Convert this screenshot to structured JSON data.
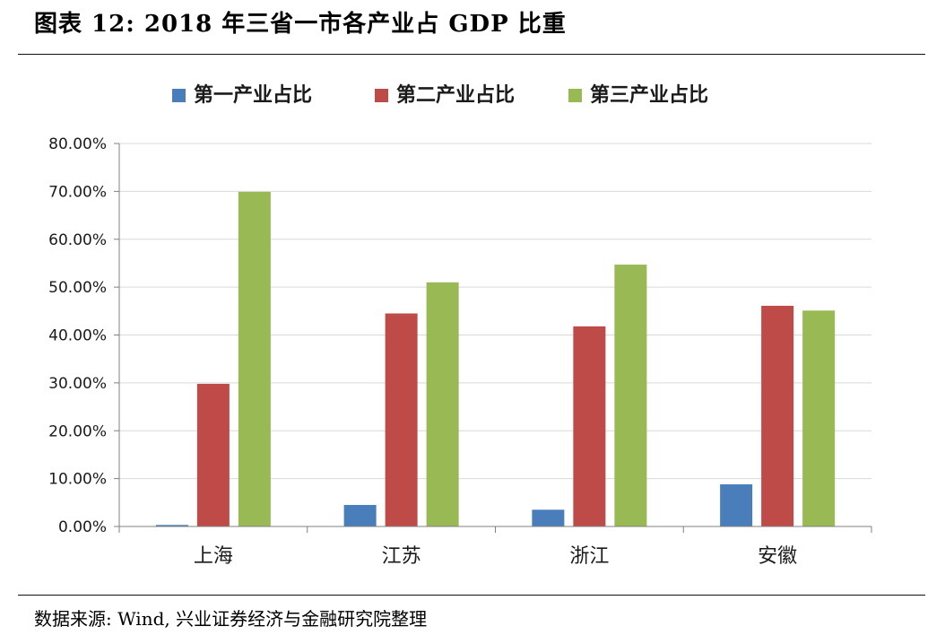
{
  "page": {
    "title": "图表 12: 2018 年三省一市各产业占 GDP 比重",
    "source": "数据来源: Wind, 兴业证券经济与金融研究院整理"
  },
  "chart_data": {
    "type": "bar",
    "categories": [
      "上海",
      "江苏",
      "浙江",
      "安徽"
    ],
    "series": [
      {
        "name": "第一产业占比",
        "color": "#4a7ebb",
        "values": [
          0.32,
          4.5,
          3.5,
          8.8
        ]
      },
      {
        "name": "第二产业占比",
        "color": "#be4b48",
        "values": [
          29.8,
          44.5,
          41.8,
          46.1
        ]
      },
      {
        "name": "第三产业占比",
        "color": "#98b954",
        "values": [
          69.9,
          51.0,
          54.7,
          45.1
        ]
      }
    ],
    "ylim": [
      0,
      80
    ],
    "yticks": [
      "0.00%",
      "10.00%",
      "20.00%",
      "30.00%",
      "40.00%",
      "50.00%",
      "60.00%",
      "70.00%",
      "80.00%"
    ],
    "ytick_values": [
      0,
      10,
      20,
      30,
      40,
      50,
      60,
      70,
      80
    ],
    "grid": true,
    "legend_position": "top-center",
    "xlabel": "",
    "ylabel": ""
  }
}
